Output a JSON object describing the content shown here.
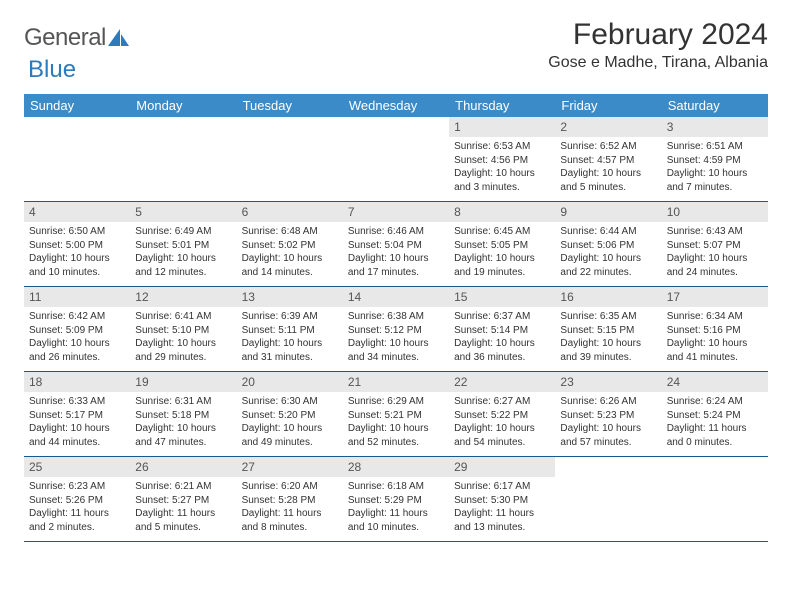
{
  "logo": {
    "text1": "General",
    "text2": "Blue"
  },
  "title": "February 2024",
  "location": "Gose e Madhe, Tirana, Albania",
  "colors": {
    "header_bg": "#3b8bc9",
    "header_text": "#ffffff",
    "daynum_bg": "#e8e8e8",
    "week_border": "#1a5a8a",
    "body_text": "#333333",
    "logo_gray": "#555555",
    "logo_blue": "#2b7bbd",
    "background": "#ffffff"
  },
  "day_names": [
    "Sunday",
    "Monday",
    "Tuesday",
    "Wednesday",
    "Thursday",
    "Friday",
    "Saturday"
  ],
  "weeks": [
    [
      null,
      null,
      null,
      null,
      {
        "n": "1",
        "sr": "Sunrise: 6:53 AM",
        "ss": "Sunset: 4:56 PM",
        "dl": "Daylight: 10 hours and 3 minutes."
      },
      {
        "n": "2",
        "sr": "Sunrise: 6:52 AM",
        "ss": "Sunset: 4:57 PM",
        "dl": "Daylight: 10 hours and 5 minutes."
      },
      {
        "n": "3",
        "sr": "Sunrise: 6:51 AM",
        "ss": "Sunset: 4:59 PM",
        "dl": "Daylight: 10 hours and 7 minutes."
      }
    ],
    [
      {
        "n": "4",
        "sr": "Sunrise: 6:50 AM",
        "ss": "Sunset: 5:00 PM",
        "dl": "Daylight: 10 hours and 10 minutes."
      },
      {
        "n": "5",
        "sr": "Sunrise: 6:49 AM",
        "ss": "Sunset: 5:01 PM",
        "dl": "Daylight: 10 hours and 12 minutes."
      },
      {
        "n": "6",
        "sr": "Sunrise: 6:48 AM",
        "ss": "Sunset: 5:02 PM",
        "dl": "Daylight: 10 hours and 14 minutes."
      },
      {
        "n": "7",
        "sr": "Sunrise: 6:46 AM",
        "ss": "Sunset: 5:04 PM",
        "dl": "Daylight: 10 hours and 17 minutes."
      },
      {
        "n": "8",
        "sr": "Sunrise: 6:45 AM",
        "ss": "Sunset: 5:05 PM",
        "dl": "Daylight: 10 hours and 19 minutes."
      },
      {
        "n": "9",
        "sr": "Sunrise: 6:44 AM",
        "ss": "Sunset: 5:06 PM",
        "dl": "Daylight: 10 hours and 22 minutes."
      },
      {
        "n": "10",
        "sr": "Sunrise: 6:43 AM",
        "ss": "Sunset: 5:07 PM",
        "dl": "Daylight: 10 hours and 24 minutes."
      }
    ],
    [
      {
        "n": "11",
        "sr": "Sunrise: 6:42 AM",
        "ss": "Sunset: 5:09 PM",
        "dl": "Daylight: 10 hours and 26 minutes."
      },
      {
        "n": "12",
        "sr": "Sunrise: 6:41 AM",
        "ss": "Sunset: 5:10 PM",
        "dl": "Daylight: 10 hours and 29 minutes."
      },
      {
        "n": "13",
        "sr": "Sunrise: 6:39 AM",
        "ss": "Sunset: 5:11 PM",
        "dl": "Daylight: 10 hours and 31 minutes."
      },
      {
        "n": "14",
        "sr": "Sunrise: 6:38 AM",
        "ss": "Sunset: 5:12 PM",
        "dl": "Daylight: 10 hours and 34 minutes."
      },
      {
        "n": "15",
        "sr": "Sunrise: 6:37 AM",
        "ss": "Sunset: 5:14 PM",
        "dl": "Daylight: 10 hours and 36 minutes."
      },
      {
        "n": "16",
        "sr": "Sunrise: 6:35 AM",
        "ss": "Sunset: 5:15 PM",
        "dl": "Daylight: 10 hours and 39 minutes."
      },
      {
        "n": "17",
        "sr": "Sunrise: 6:34 AM",
        "ss": "Sunset: 5:16 PM",
        "dl": "Daylight: 10 hours and 41 minutes."
      }
    ],
    [
      {
        "n": "18",
        "sr": "Sunrise: 6:33 AM",
        "ss": "Sunset: 5:17 PM",
        "dl": "Daylight: 10 hours and 44 minutes."
      },
      {
        "n": "19",
        "sr": "Sunrise: 6:31 AM",
        "ss": "Sunset: 5:18 PM",
        "dl": "Daylight: 10 hours and 47 minutes."
      },
      {
        "n": "20",
        "sr": "Sunrise: 6:30 AM",
        "ss": "Sunset: 5:20 PM",
        "dl": "Daylight: 10 hours and 49 minutes."
      },
      {
        "n": "21",
        "sr": "Sunrise: 6:29 AM",
        "ss": "Sunset: 5:21 PM",
        "dl": "Daylight: 10 hours and 52 minutes."
      },
      {
        "n": "22",
        "sr": "Sunrise: 6:27 AM",
        "ss": "Sunset: 5:22 PM",
        "dl": "Daylight: 10 hours and 54 minutes."
      },
      {
        "n": "23",
        "sr": "Sunrise: 6:26 AM",
        "ss": "Sunset: 5:23 PM",
        "dl": "Daylight: 10 hours and 57 minutes."
      },
      {
        "n": "24",
        "sr": "Sunrise: 6:24 AM",
        "ss": "Sunset: 5:24 PM",
        "dl": "Daylight: 11 hours and 0 minutes."
      }
    ],
    [
      {
        "n": "25",
        "sr": "Sunrise: 6:23 AM",
        "ss": "Sunset: 5:26 PM",
        "dl": "Daylight: 11 hours and 2 minutes."
      },
      {
        "n": "26",
        "sr": "Sunrise: 6:21 AM",
        "ss": "Sunset: 5:27 PM",
        "dl": "Daylight: 11 hours and 5 minutes."
      },
      {
        "n": "27",
        "sr": "Sunrise: 6:20 AM",
        "ss": "Sunset: 5:28 PM",
        "dl": "Daylight: 11 hours and 8 minutes."
      },
      {
        "n": "28",
        "sr": "Sunrise: 6:18 AM",
        "ss": "Sunset: 5:29 PM",
        "dl": "Daylight: 11 hours and 10 minutes."
      },
      {
        "n": "29",
        "sr": "Sunrise: 6:17 AM",
        "ss": "Sunset: 5:30 PM",
        "dl": "Daylight: 11 hours and 13 minutes."
      },
      null,
      null
    ]
  ]
}
